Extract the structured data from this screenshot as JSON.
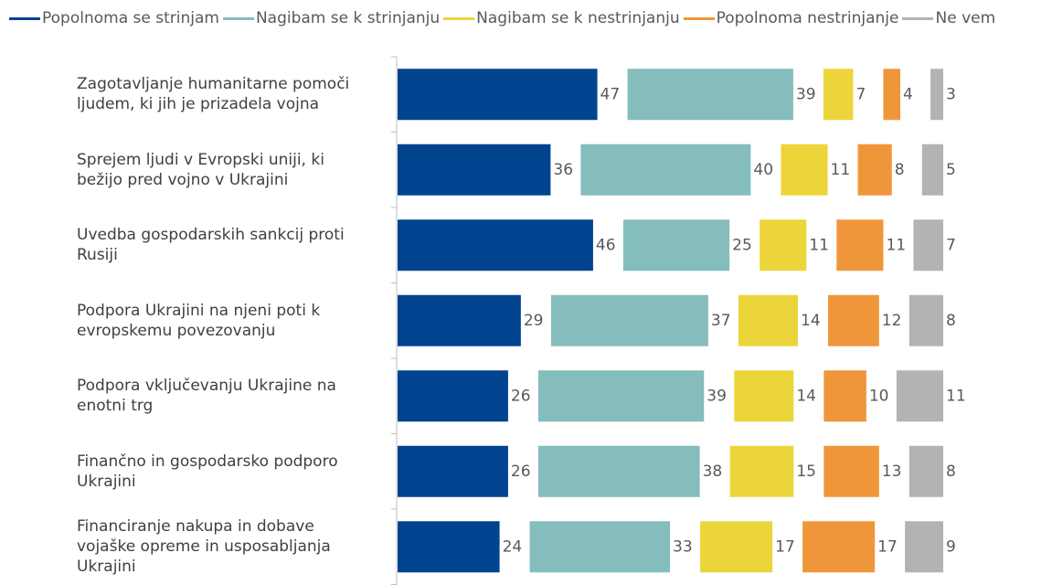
{
  "chart_data": {
    "type": "bar",
    "orientation": "horizontal",
    "legend": "top",
    "categories": [
      "Zagotavljanje humanitarne pomoči ljudem, ki jih je prizadela vojna",
      "Sprejem ljudi v Evropski uniji, ki bežijo pred vojno v Ukrajini",
      "Uvedba gospodarskih sankcij proti Rusiji",
      "Podpora Ukrajini na njeni poti k evropskemu povezovanju",
      "Podpora vključevanju Ukrajine na enotni trg",
      "Finančno in gospodarsko podporo Ukrajini",
      "Financiranje nakupa in dobave vojaške opreme in usposabljanja Ukrajini"
    ],
    "series": [
      {
        "name": "Popolnoma se strinjam",
        "color": "#00438f",
        "values": [
          47,
          36,
          46,
          29,
          26,
          26,
          24
        ]
      },
      {
        "name": "Nagibam se k strinjanju",
        "color": "#85bcbc",
        "values": [
          39,
          40,
          25,
          37,
          39,
          38,
          33
        ]
      },
      {
        "name": "Nagibam se k nestrinjanju",
        "color": "#ecd53a",
        "values": [
          7,
          11,
          11,
          14,
          14,
          15,
          17
        ]
      },
      {
        "name": "Popolnoma nestrinjanje",
        "color": "#f0963a",
        "values": [
          4,
          8,
          11,
          12,
          10,
          13,
          17
        ]
      },
      {
        "name": "Ne vem",
        "color": "#b3b3b3",
        "values": [
          3,
          5,
          7,
          8,
          11,
          8,
          9
        ]
      }
    ]
  }
}
